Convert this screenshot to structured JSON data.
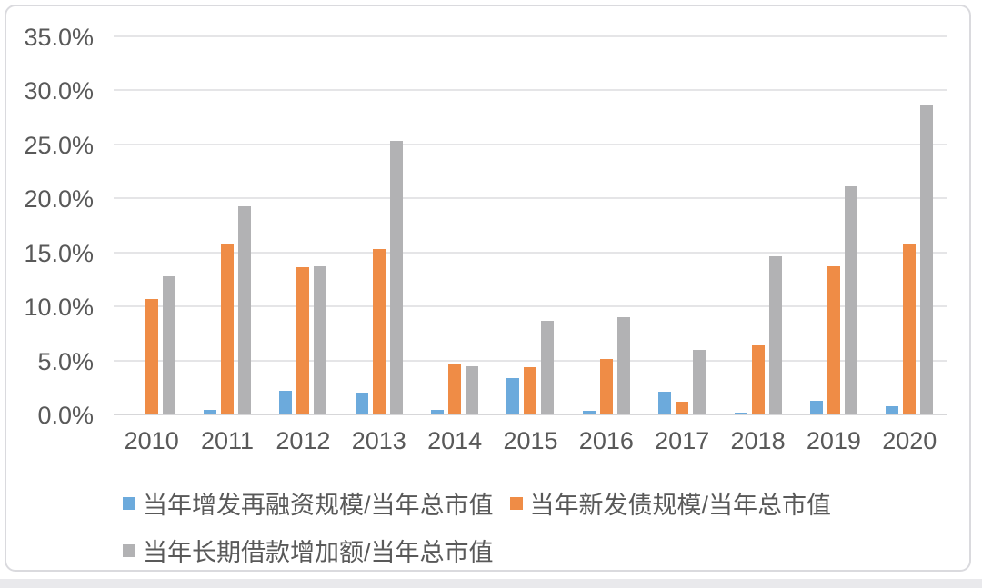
{
  "chart_data": {
    "type": "bar",
    "title": "",
    "categories": [
      "2010",
      "2011",
      "2012",
      "2013",
      "2014",
      "2015",
      "2016",
      "2017",
      "2018",
      "2019",
      "2020"
    ],
    "series": [
      {
        "name": "当年增发再融资规模/当年总市值",
        "color": "#6caadc",
        "values": [
          0.0,
          0.4,
          2.2,
          2.0,
          0.4,
          3.4,
          0.3,
          2.1,
          0.2,
          1.3,
          0.8
        ]
      },
      {
        "name": "当年新发债规模/当年总市值",
        "color": "#ef8c46",
        "values": [
          10.7,
          15.7,
          13.6,
          15.3,
          4.7,
          4.4,
          5.1,
          1.2,
          6.4,
          13.7,
          15.8
        ]
      },
      {
        "name": "当年长期借款增加额/当年总市值",
        "color": "#b2b2b4",
        "values": [
          12.8,
          19.3,
          13.7,
          25.3,
          4.5,
          8.7,
          9.0,
          6.0,
          14.6,
          21.1,
          28.7
        ]
      }
    ],
    "unit": "%",
    "xlabel": "",
    "ylabel": "",
    "ylim": [
      0,
      35
    ],
    "ytick_values": [
      0,
      5,
      10,
      15,
      20,
      25,
      30,
      35
    ],
    "ytick_labels": [
      "0.0%",
      "5.0%",
      "10.0%",
      "15.0%",
      "20.0%",
      "25.0%",
      "30.0%",
      "35.0%"
    ],
    "grid": true,
    "legend_position": "bottom",
    "legend_rows": [
      [
        0,
        1
      ],
      [
        2
      ]
    ]
  },
  "colors": {
    "text": "#595959",
    "gridline": "#e5e5e7",
    "axis_line": "#d7d7d9",
    "card_border": "#dadade",
    "background": "#ffffff"
  }
}
